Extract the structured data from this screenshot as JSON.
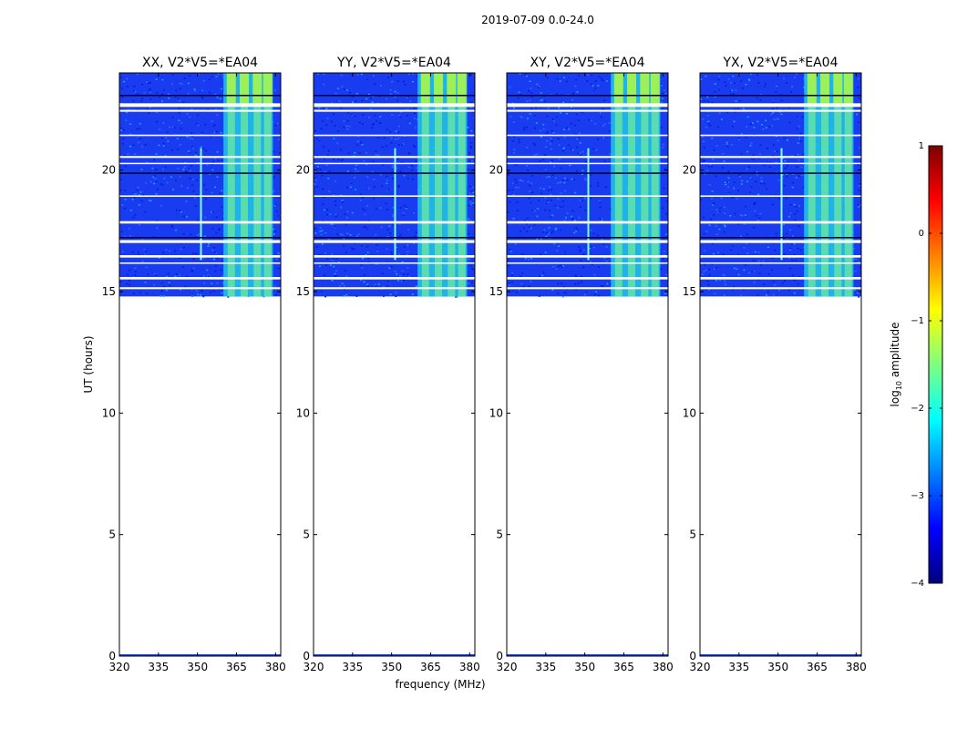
{
  "suptitle": "2019-07-09 0.0-24.0",
  "chart_data": [
    {
      "type": "heatmap",
      "title": "XX, V2*V5=*EA04",
      "xlabel": "",
      "ylabel": "UT (hours)",
      "xlim": [
        320,
        382
      ],
      "ylim": [
        0,
        24
      ],
      "xticks": [
        "320",
        "335",
        "350",
        "365",
        "380"
      ],
      "yticks": [
        "0",
        "5",
        "10",
        "15",
        "20"
      ],
      "data_start_hour": 14.8,
      "data_end_hour": 24.0,
      "rfi_band_mhz": [
        360,
        379
      ],
      "bright_channels_mhz": [
        363,
        368,
        373,
        377
      ]
    },
    {
      "type": "heatmap",
      "title": "YY, V2*V5=*EA04",
      "xlabel": "frequency (MHz)",
      "ylabel": "",
      "xlim": [
        320,
        382
      ],
      "ylim": [
        0,
        24
      ],
      "xticks": [
        "320",
        "335",
        "350",
        "365",
        "380"
      ],
      "yticks": [
        "0",
        "5",
        "10",
        "15",
        "20"
      ],
      "data_start_hour": 14.8,
      "data_end_hour": 24.0,
      "rfi_band_mhz": [
        360,
        379
      ],
      "bright_channels_mhz": [
        363,
        368,
        373,
        377
      ]
    },
    {
      "type": "heatmap",
      "title": "XY, V2*V5=*EA04",
      "xlabel": "",
      "ylabel": "",
      "xlim": [
        320,
        382
      ],
      "ylim": [
        0,
        24
      ],
      "xticks": [
        "320",
        "335",
        "350",
        "365",
        "380"
      ],
      "yticks": [
        "0",
        "5",
        "10",
        "15",
        "20"
      ],
      "data_start_hour": 14.8,
      "data_end_hour": 24.0,
      "rfi_band_mhz": [
        360,
        379
      ],
      "bright_channels_mhz": [
        363,
        368,
        373,
        377
      ]
    },
    {
      "type": "heatmap",
      "title": "YX, V2*V5=*EA04",
      "xlabel": "",
      "ylabel": "",
      "xlim": [
        320,
        382
      ],
      "ylim": [
        0,
        24
      ],
      "xticks": [
        "320",
        "335",
        "350",
        "365",
        "380"
      ],
      "yticks": [
        "0",
        "5",
        "10",
        "15",
        "20"
      ],
      "data_start_hour": 14.8,
      "data_end_hour": 24.0,
      "rfi_band_mhz": [
        360,
        379
      ],
      "bright_channels_mhz": [
        363,
        368,
        373,
        377
      ]
    }
  ],
  "colorbar": {
    "label_main": "log",
    "label_sub": "10",
    "label_rest": " amplitude",
    "range": [
      -4,
      1
    ],
    "ticks": [
      {
        "value": 1,
        "label": "1"
      },
      {
        "value": 0,
        "label": "0"
      },
      {
        "value": -1,
        "label": "−1"
      },
      {
        "value": -2,
        "label": "−2"
      },
      {
        "value": -3,
        "label": "−3"
      },
      {
        "value": -4,
        "label": "−4"
      }
    ],
    "colors": [
      "#00007f",
      "#0000ff",
      "#007fff",
      "#00ffff",
      "#7fff7f",
      "#ffff00",
      "#ff7f00",
      "#ff0000",
      "#7f0000"
    ]
  }
}
